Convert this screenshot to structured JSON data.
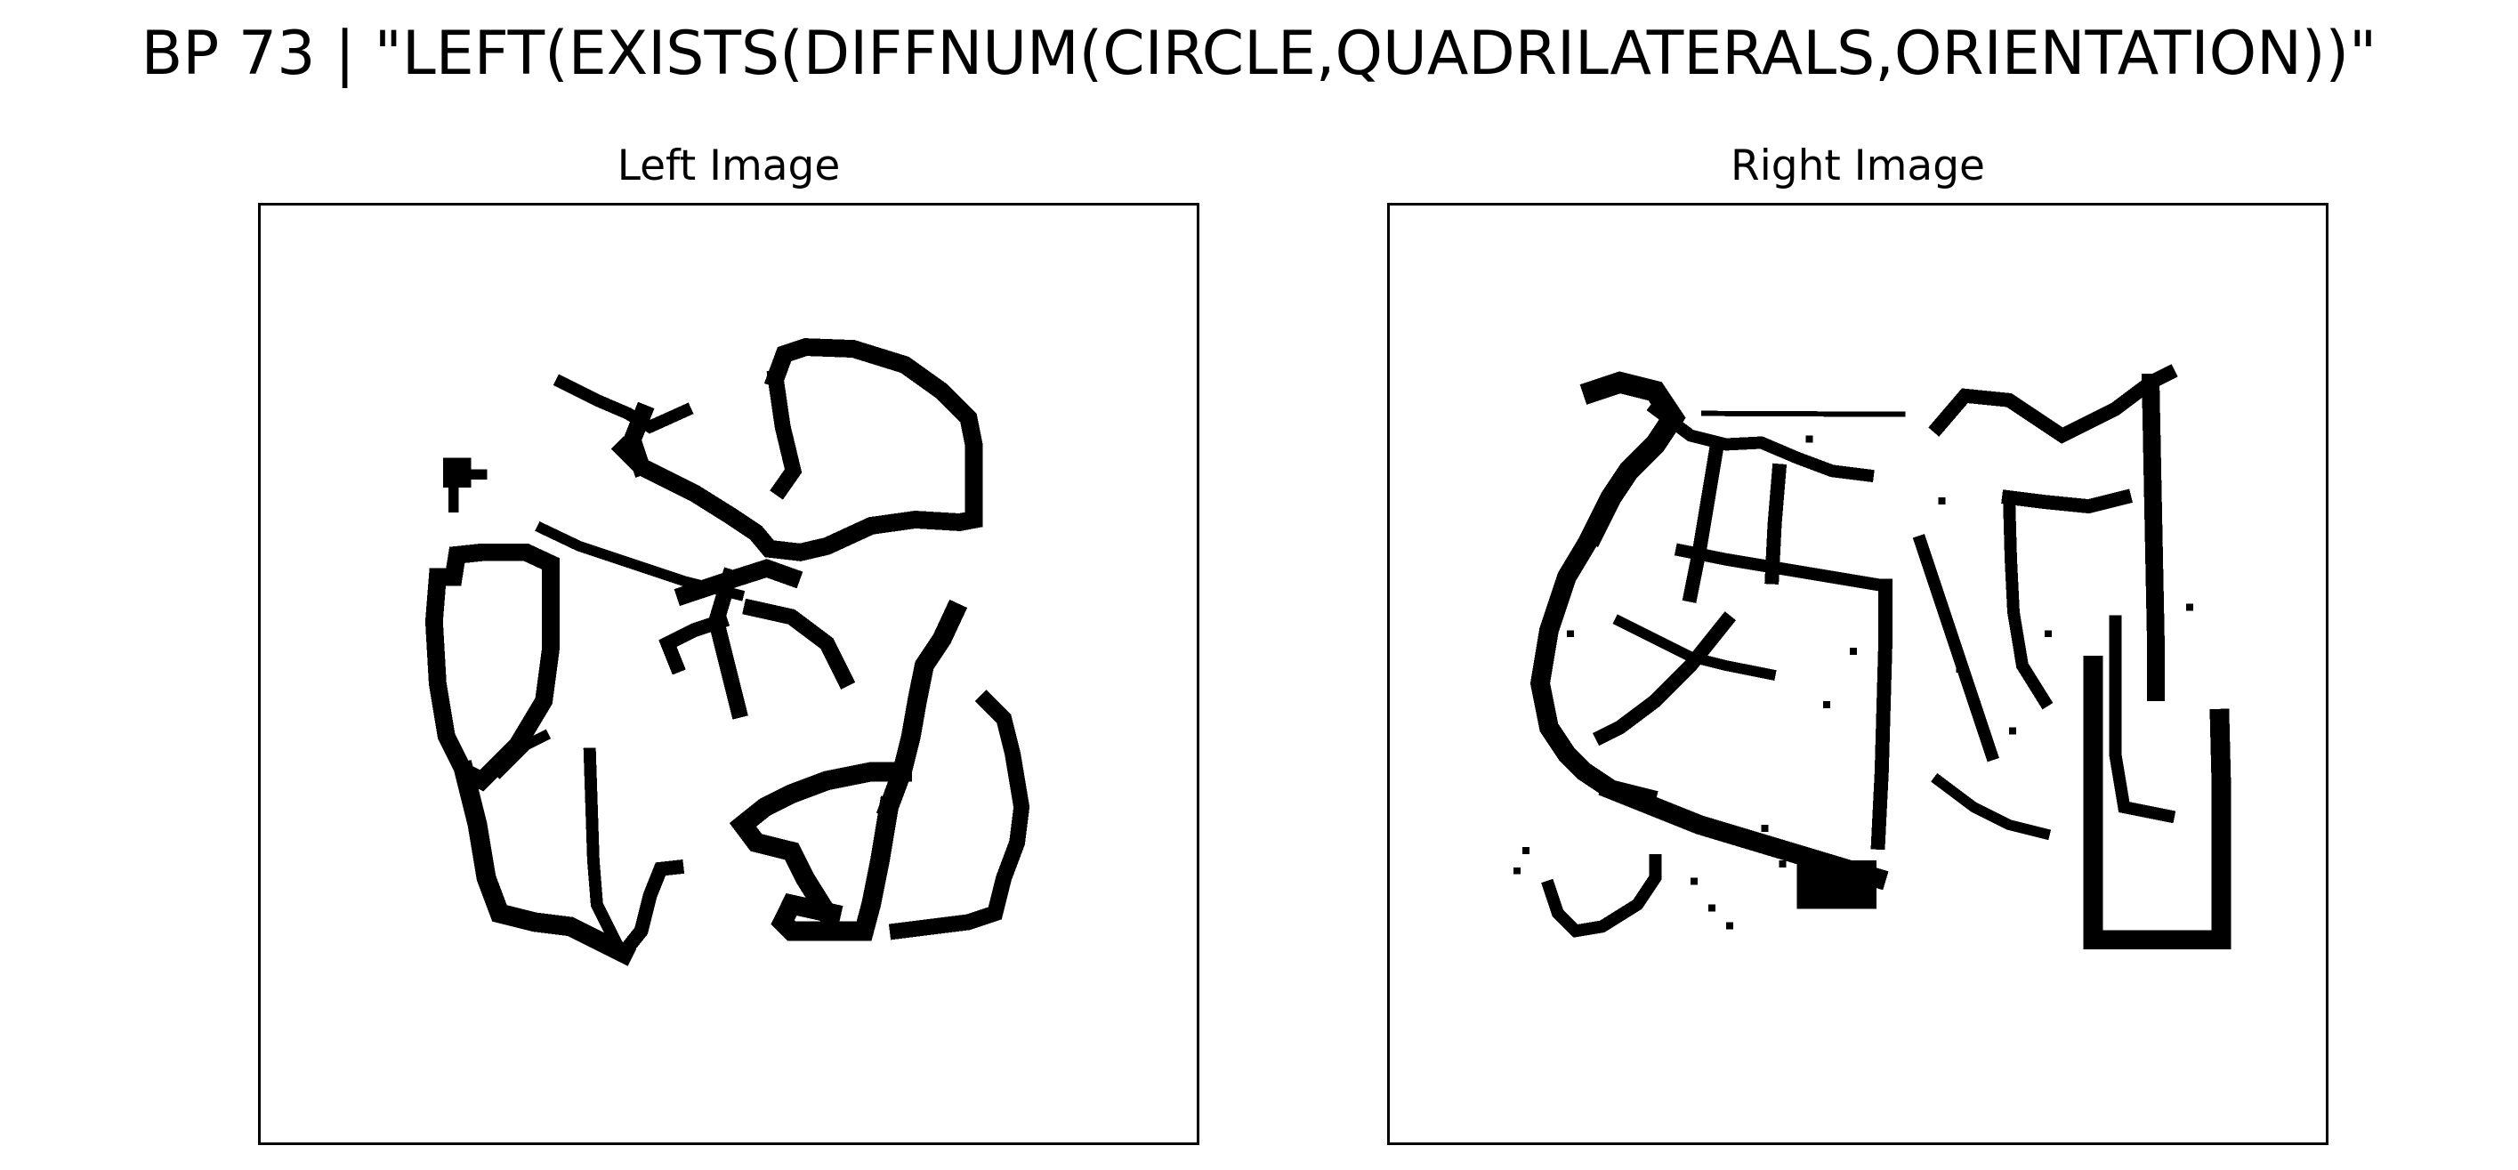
{
  "figure": {
    "title": "BP 73 | \"LEFT(EXISTS(DIFFNUM(CIRCLE,QUADRILATERALS,ORIENTATION))\""
  },
  "panels": {
    "left": {
      "title": "Left Image"
    },
    "right": {
      "title": "Right Image"
    }
  },
  "colors": {
    "ink": "#000000",
    "background": "#ffffff",
    "frame": "#000000"
  }
}
